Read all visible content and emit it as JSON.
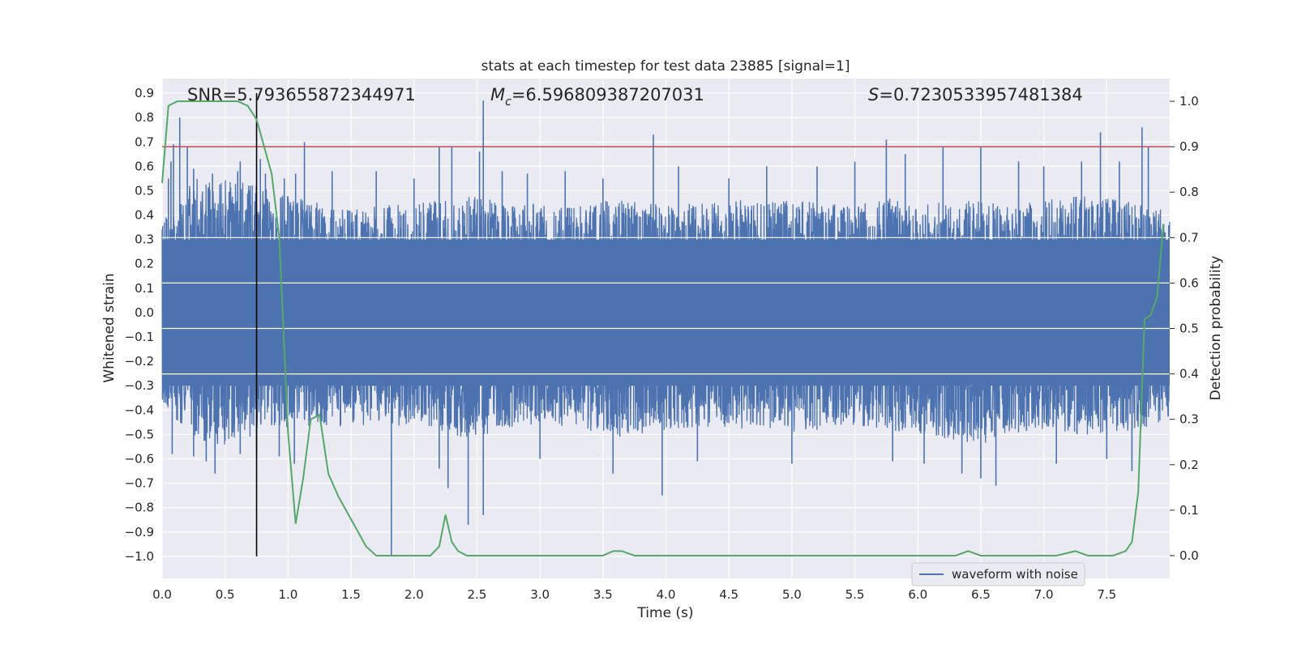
{
  "chart_data": {
    "type": "line",
    "title": "stats at each timestep for test data 23885 [signal=1]",
    "xlabel": "Time (s)",
    "ylabel_left": "Whitened strain",
    "ylabel_right": "Detection probability",
    "xlim": [
      0.0,
      8.0
    ],
    "ylim_left": [
      -1.09,
      0.96
    ],
    "ylim_right": [
      -0.05,
      1.05
    ],
    "x_ticks": [
      "0.0",
      "0.5",
      "1.0",
      "1.5",
      "2.0",
      "2.5",
      "3.0",
      "3.5",
      "4.0",
      "4.5",
      "5.0",
      "5.5",
      "6.0",
      "6.5",
      "7.0",
      "7.5"
    ],
    "y_ticks_left": [
      "0.9",
      "0.8",
      "0.7",
      "0.6",
      "0.5",
      "0.4",
      "0.3",
      "0.2",
      "0.1",
      "0.0",
      "-0.1",
      "-0.2",
      "-0.3",
      "-0.4",
      "-0.5",
      "-0.6",
      "-0.7",
      "-0.8",
      "-0.9",
      "-1.0"
    ],
    "y_ticks_right": [
      "1.0",
      "0.9",
      "0.8",
      "0.7",
      "0.6",
      "0.5",
      "0.4",
      "0.3",
      "0.2",
      "0.1",
      "0.0"
    ],
    "grid": true,
    "legend_position": "bottom-right",
    "annotations": {
      "snr": "SNR=5.793655872344971",
      "mc_symbol": "M",
      "mc_sub": "c",
      "mc_value": "=6.596809387207031",
      "s_symbol": "S",
      "s_value": "=0.7230533957481384"
    },
    "threshold_probability": 0.9,
    "event_time": 0.75,
    "series": [
      {
        "name": "waveform with noise",
        "axis": "left",
        "color": "#4c72b0",
        "envelope": {
          "x": [
            0.0,
            0.25,
            0.5,
            0.75,
            1.0,
            1.25,
            1.5,
            1.75,
            2.0,
            2.25,
            2.5,
            2.75,
            3.0,
            3.25,
            3.5,
            3.75,
            4.0,
            4.25,
            4.5,
            4.75,
            5.0,
            5.25,
            5.5,
            5.75,
            6.0,
            6.25,
            6.5,
            6.75,
            7.0,
            7.25,
            7.5,
            7.75,
            8.0
          ],
          "upper": [
            0.38,
            0.55,
            0.55,
            0.52,
            0.48,
            0.45,
            0.42,
            0.44,
            0.45,
            0.47,
            0.48,
            0.44,
            0.45,
            0.43,
            0.46,
            0.46,
            0.44,
            0.45,
            0.47,
            0.45,
            0.46,
            0.45,
            0.44,
            0.47,
            0.46,
            0.45,
            0.47,
            0.44,
            0.46,
            0.48,
            0.47,
            0.45,
            0.42
          ],
          "lower": [
            -0.38,
            -0.52,
            -0.55,
            -0.5,
            -0.48,
            -0.46,
            -0.47,
            -0.48,
            -0.45,
            -0.5,
            -0.52,
            -0.48,
            -0.46,
            -0.47,
            -0.5,
            -0.52,
            -0.49,
            -0.47,
            -0.48,
            -0.47,
            -0.49,
            -0.48,
            -0.46,
            -0.48,
            -0.5,
            -0.52,
            -0.54,
            -0.5,
            -0.48,
            -0.5,
            -0.51,
            -0.48,
            -0.44
          ]
        },
        "spikes": [
          [
            0.05,
            0.55
          ],
          [
            0.07,
            0.62
          ],
          [
            0.09,
            0.69
          ],
          [
            0.14,
            0.8
          ],
          [
            0.2,
            0.68
          ],
          [
            0.25,
            0.59
          ],
          [
            0.4,
            0.57
          ],
          [
            0.6,
            0.58
          ],
          [
            0.62,
            0.62
          ],
          [
            0.78,
            0.63
          ],
          [
            0.82,
            0.57
          ],
          [
            0.97,
            0.55
          ],
          [
            1.06,
            0.57
          ],
          [
            1.13,
            0.7
          ],
          [
            1.35,
            0.58
          ],
          [
            1.7,
            0.58
          ],
          [
            2.0,
            0.55
          ],
          [
            2.2,
            0.68
          ],
          [
            2.3,
            0.68
          ],
          [
            2.52,
            0.66
          ],
          [
            2.55,
            0.87
          ],
          [
            2.7,
            0.58
          ],
          [
            2.9,
            0.57
          ],
          [
            3.2,
            0.58
          ],
          [
            3.5,
            0.55
          ],
          [
            3.9,
            0.73
          ],
          [
            4.1,
            0.6
          ],
          [
            4.5,
            0.55
          ],
          [
            4.8,
            0.6
          ],
          [
            5.2,
            0.6
          ],
          [
            5.5,
            0.62
          ],
          [
            5.75,
            0.71
          ],
          [
            5.9,
            0.65
          ],
          [
            6.2,
            0.68
          ],
          [
            6.5,
            0.68
          ],
          [
            6.8,
            0.62
          ],
          [
            7.0,
            0.6
          ],
          [
            7.3,
            0.62
          ],
          [
            7.45,
            0.74
          ],
          [
            7.6,
            0.62
          ],
          [
            7.78,
            0.76
          ],
          [
            7.83,
            0.68
          ],
          [
            0.08,
            -0.58
          ],
          [
            0.25,
            -0.59
          ],
          [
            0.35,
            -0.61
          ],
          [
            0.42,
            -0.66
          ],
          [
            0.62,
            -0.58
          ],
          [
            0.75,
            -0.58
          ],
          [
            0.93,
            -0.59
          ],
          [
            1.05,
            -0.62
          ],
          [
            1.82,
            -1.0
          ],
          [
            2.2,
            -0.64
          ],
          [
            2.27,
            -0.72
          ],
          [
            2.43,
            -0.87
          ],
          [
            2.55,
            -0.83
          ],
          [
            3.0,
            -0.6
          ],
          [
            3.58,
            -0.66
          ],
          [
            3.97,
            -0.75
          ],
          [
            4.25,
            -0.61
          ],
          [
            5.0,
            -0.62
          ],
          [
            5.8,
            -0.61
          ],
          [
            6.05,
            -0.62
          ],
          [
            6.35,
            -0.66
          ],
          [
            6.5,
            -0.68
          ],
          [
            6.62,
            -0.71
          ],
          [
            7.1,
            -0.62
          ],
          [
            7.5,
            -0.6
          ],
          [
            7.7,
            -0.65
          ]
        ]
      },
      {
        "name": "",
        "axis": "right",
        "color": "#55a868",
        "x": [
          0.0,
          0.05,
          0.12,
          0.2,
          0.3,
          0.4,
          0.5,
          0.6,
          0.68,
          0.75,
          0.8,
          0.87,
          0.93,
          1.0,
          1.06,
          1.12,
          1.18,
          1.25,
          1.32,
          1.4,
          1.44,
          1.5,
          1.56,
          1.62,
          1.7,
          1.8,
          1.9,
          2.0,
          2.13,
          2.2,
          2.25,
          2.3,
          2.35,
          2.42,
          2.5,
          2.58,
          2.65,
          2.75,
          2.85,
          2.95,
          3.05,
          3.15,
          3.25,
          3.4,
          3.5,
          3.58,
          3.65,
          3.75,
          3.87,
          4.0,
          4.2,
          4.35,
          4.5,
          4.7,
          5.0,
          5.3,
          5.6,
          5.8,
          6.0,
          6.1,
          6.15,
          6.2,
          6.3,
          6.4,
          6.5,
          6.7,
          6.9,
          7.1,
          7.25,
          7.35,
          7.45,
          7.55,
          7.65,
          7.7,
          7.75,
          7.8,
          7.85,
          7.9,
          7.95
        ],
        "values": [
          0.82,
          0.99,
          1.0,
          1.0,
          1.0,
          1.0,
          1.0,
          1.0,
          0.99,
          0.96,
          0.91,
          0.84,
          0.7,
          0.27,
          0.07,
          0.17,
          0.3,
          0.31,
          0.18,
          0.13,
          0.11,
          0.08,
          0.05,
          0.02,
          0.0,
          0.0,
          0.0,
          0.0,
          0.0,
          0.02,
          0.09,
          0.03,
          0.01,
          0.0,
          0.0,
          0.0,
          0.0,
          0.0,
          0.0,
          0.0,
          0.0,
          0.0,
          0.0,
          0.0,
          0.0,
          0.01,
          0.01,
          0.0,
          0.0,
          0.0,
          0.0,
          0.0,
          0.0,
          0.0,
          0.0,
          0.0,
          0.0,
          0.0,
          0.0,
          0.0,
          0.0,
          0.0,
          0.0,
          0.01,
          0.0,
          0.0,
          0.0,
          0.0,
          0.01,
          0.0,
          0.0,
          0.0,
          0.01,
          0.03,
          0.14,
          0.52,
          0.53,
          0.57,
          0.73
        ]
      }
    ]
  }
}
